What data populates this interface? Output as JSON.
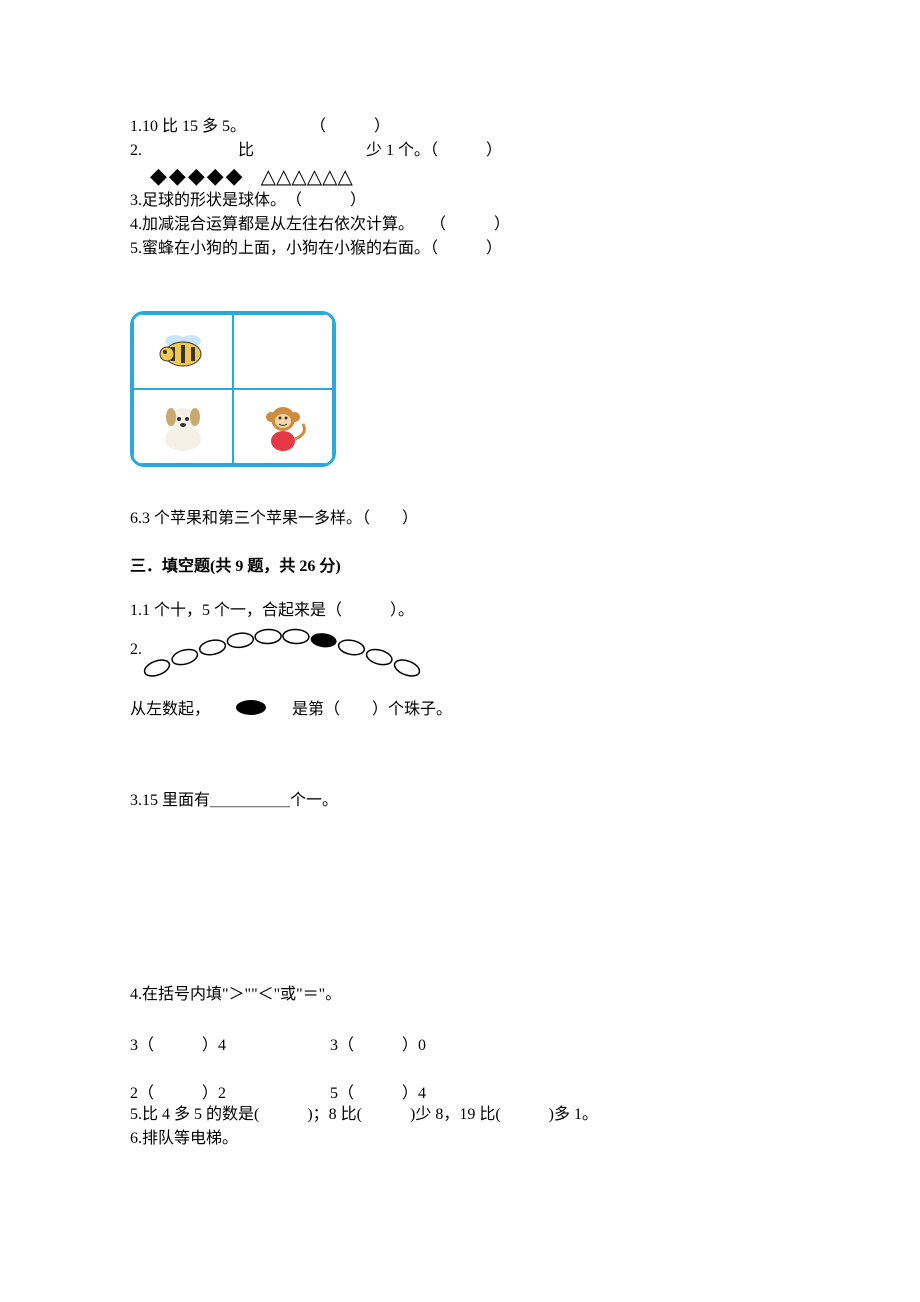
{
  "q1": {
    "num": "1.",
    "text": "10 比 15 多 5。",
    "paren": "（　　　）"
  },
  "q2": {
    "num": "2.",
    "mid1": "比",
    "mid2": "少 1 个。（　　　）",
    "diamond_count": 5,
    "triangle_count": 6,
    "diamond_color": "#000000",
    "triangle_color": "#000000"
  },
  "q3": {
    "num": "3.",
    "text": "足球的形状是球体。",
    "paren": "（　　　）"
  },
  "q4": {
    "num": "4.",
    "text": "加减混合运算都是从左往右依次计算。",
    "paren": "　　（　　　）"
  },
  "q5": {
    "num": "5.",
    "text": "蜜蜂在小狗的上面，小狗在小猴的右面。",
    "paren": "（　　　）"
  },
  "grid": {
    "border_color": "#2aa8e0",
    "bee_colors": {
      "body": "#f2c94c",
      "stripe": "#333333",
      "wing": "#bde0fe"
    },
    "dog_colors": {
      "body": "#f5f0e6",
      "ear": "#c9a96e"
    },
    "monkey_colors": {
      "body": "#d08c3e",
      "face": "#f5d6a8",
      "shirt": "#e63946"
    }
  },
  "q6": {
    "num": "6.",
    "text": "3 个苹果和第三个苹果一多样。",
    "paren": "（　　）"
  },
  "section3": {
    "title": "三．填空题(共 9 题，共 26 分)"
  },
  "f1": {
    "num": "1.",
    "text": "1 个十，5 个一，合起来是（　　　）。"
  },
  "f2": {
    "num": "2.",
    "bead_count": 10,
    "black_index": 7,
    "line1_a": "从左数起，",
    "line1_b": "是第（　　）个珠子。"
  },
  "f3": {
    "num": "3.",
    "a": "15 里面有",
    "blank": "＿＿＿＿＿",
    "b": "个一。"
  },
  "f4": {
    "num": "4.",
    "title": "在括号内填\"＞\"\"＜\"或\"＝\"。",
    "rows": [
      [
        "3（　　　）4",
        "3（　　　）0"
      ],
      [
        "2（　　　）2",
        "5（　　　）4"
      ]
    ]
  },
  "f5": {
    "num": "5.",
    "text": "比 4 多 5 的数是(　　　)；8 比(　　　)少 8，19 比(　　　)多 1。"
  },
  "f6": {
    "num": "6.",
    "text": "排队等电梯。"
  },
  "style": {
    "font_size": 16,
    "text_color": "#000000",
    "background": "#ffffff"
  }
}
